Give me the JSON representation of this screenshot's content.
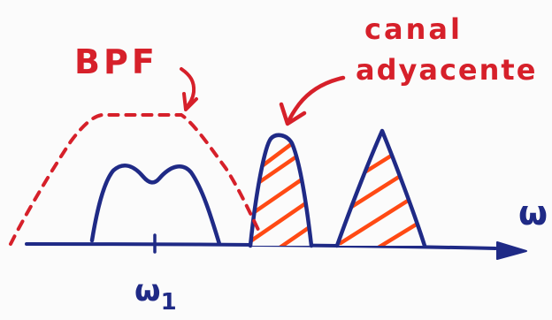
{
  "labels": {
    "bpf": "BPF",
    "canal_line1": "canal",
    "canal_line2": "adyacente",
    "omega_axis": "ω",
    "omega_center_base": "ω",
    "omega_center_sub": "1"
  },
  "colors": {
    "blue": "#1f2a86",
    "red": "#d6202a",
    "orange": "#ff4a14",
    "background": "#fbfbfb"
  }
}
